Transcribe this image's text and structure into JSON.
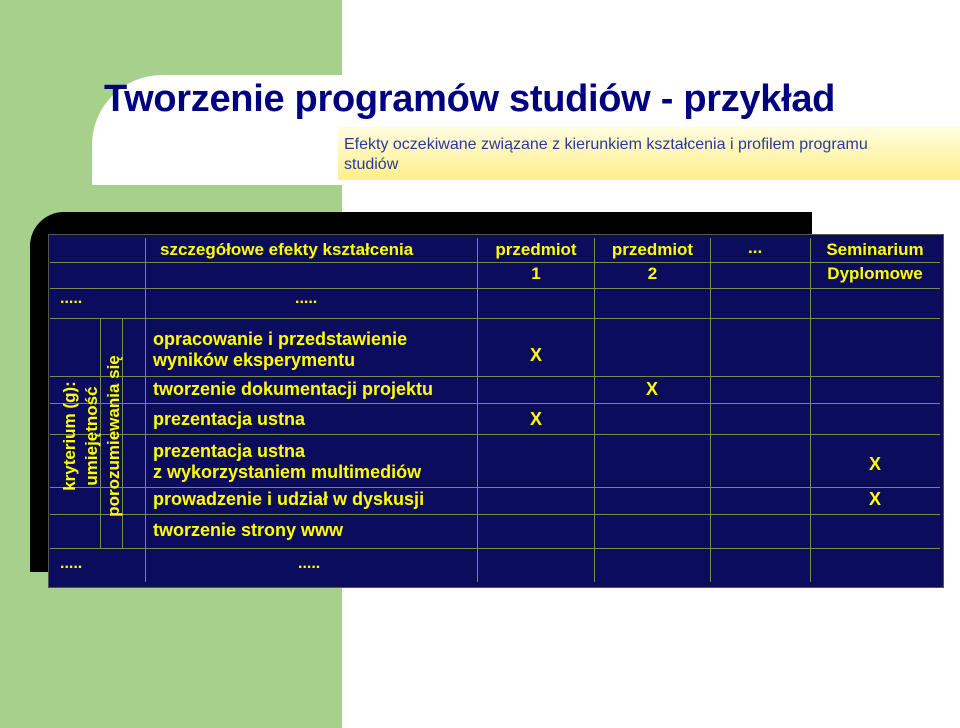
{
  "title": "Tworzenie programów studiów - przykład",
  "subtitle": "Efekty oczekiwane związane z kierunkiem kształcenia i profilem programu studiów",
  "table": {
    "header": {
      "col_main": "szczegółowe efekty kształcenia",
      "col1_line1": "przedmiot",
      "col1_line2": "1",
      "col2_line1": "przedmiot",
      "col2_line2": "2",
      "col_ellipsis": "...",
      "col4_line1": "Seminarium",
      "col4_line2": "Dyplomowe"
    },
    "top_dots_left": ".....",
    "top_dots_mid": ".....",
    "criterion": {
      "line1": "kryterium (g):",
      "line2": "umiejętność",
      "line3": "porozumiewania się"
    },
    "rows": [
      {
        "line1": "opracowanie i przedstawienie",
        "line2": "wyników eksperymentu",
        "mark_przedmiot1": "X"
      },
      {
        "text": "tworzenie dokumentacji projektu",
        "mark_przedmiot2": "X"
      },
      {
        "text": "prezentacja ustna",
        "mark_przedmiot1": "X"
      },
      {
        "line1": "prezentacja ustna",
        "line2": "z wykorzystaniem multimediów",
        "mark_seminarium": "X"
      },
      {
        "text": "prowadzenie i udział w dyskusji",
        "mark_seminarium": "X"
      },
      {
        "text": "tworzenie strony www"
      }
    ],
    "bottom_dots_left": ".....",
    "bottom_dots_mid": "....."
  },
  "colors": {
    "title": "#000080",
    "table_bg": "#0c0c5c",
    "table_text": "#ffff00",
    "green_band": "#a8d08d",
    "subtitle_bg": "#ffef8a"
  }
}
